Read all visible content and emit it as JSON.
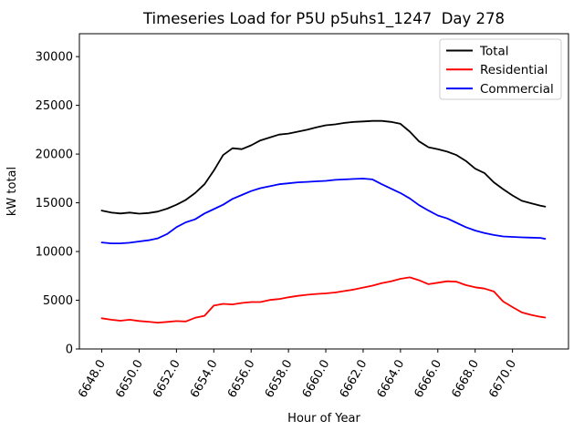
{
  "chart_data": {
    "type": "line",
    "title": "Timeseries Load for P5U p5uhs1_1247  Day 278",
    "xlabel": "Hour of Year",
    "ylabel": "kW total",
    "xlim": [
      6646.8,
      6673.0
    ],
    "ylim": [
      0,
      32350
    ],
    "grid": false,
    "legend_position": "upper right",
    "xticks": {
      "values": [
        6648,
        6650,
        6652,
        6654,
        6656,
        6658,
        6660,
        6662,
        6664,
        6666,
        6668,
        6670
      ],
      "labels": [
        "6648.0",
        "6650.0",
        "6652.0",
        "6654.0",
        "6656.0",
        "6658.0",
        "6660.0",
        "6662.0",
        "6664.0",
        "6666.0",
        "6668.0",
        "6670.0"
      ]
    },
    "yticks": {
      "values": [
        0,
        5000,
        10000,
        15000,
        20000,
        25000,
        30000
      ],
      "labels": [
        "0",
        "5000",
        "10000",
        "15000",
        "20000",
        "25000",
        "30000"
      ]
    },
    "x": [
      6648.0,
      6648.5,
      6649.0,
      6649.5,
      6650.0,
      6650.5,
      6651.0,
      6651.5,
      6652.0,
      6652.5,
      6653.0,
      6653.5,
      6654.0,
      6654.5,
      6655.0,
      6655.5,
      6656.0,
      6656.5,
      6657.0,
      6657.5,
      6658.0,
      6658.5,
      6659.0,
      6659.5,
      6660.0,
      6660.5,
      6661.0,
      6661.5,
      6662.0,
      6662.5,
      6663.0,
      6663.5,
      6664.0,
      6664.5,
      6665.0,
      6665.5,
      6666.0,
      6666.5,
      6667.0,
      6667.5,
      6668.0,
      6668.5,
      6669.0,
      6669.5,
      6670.0,
      6670.5,
      6671.0,
      6671.5,
      6671.75
    ],
    "series": [
      {
        "name": "Total",
        "color": "#000000",
        "values": [
          14200,
          14000,
          13900,
          14000,
          13880,
          13950,
          14100,
          14400,
          14800,
          15300,
          16000,
          16900,
          18300,
          19900,
          20600,
          20500,
          20900,
          21400,
          21700,
          22000,
          22100,
          22300,
          22500,
          22750,
          22950,
          23050,
          23200,
          23300,
          23350,
          23400,
          23400,
          23300,
          23100,
          22300,
          21300,
          20700,
          20500,
          20250,
          19900,
          19300,
          18500,
          18050,
          17100,
          16400,
          15750,
          15200,
          14950,
          14700,
          14600
        ]
      },
      {
        "name": "Residential",
        "color": "#ff0000",
        "values": [
          3150,
          3000,
          2900,
          3000,
          2870,
          2800,
          2700,
          2780,
          2860,
          2820,
          3200,
          3400,
          4450,
          4630,
          4570,
          4720,
          4815,
          4815,
          5030,
          5125,
          5300,
          5450,
          5560,
          5650,
          5700,
          5800,
          5950,
          6100,
          6300,
          6500,
          6750,
          6950,
          7200,
          7350,
          7050,
          6650,
          6800,
          6950,
          6900,
          6550,
          6330,
          6200,
          5900,
          4870,
          4300,
          3750,
          3500,
          3300,
          3230
        ]
      },
      {
        "name": "Commercial",
        "color": "#0000ff",
        "values": [
          10930,
          10840,
          10840,
          10900,
          11030,
          11150,
          11350,
          11800,
          12500,
          13000,
          13300,
          13900,
          14350,
          14800,
          15400,
          15800,
          16200,
          16500,
          16700,
          16900,
          17000,
          17100,
          17150,
          17200,
          17250,
          17350,
          17400,
          17450,
          17480,
          17400,
          16900,
          16450,
          16000,
          15450,
          14750,
          14200,
          13700,
          13400,
          12950,
          12500,
          12150,
          11900,
          11700,
          11550,
          11500,
          11450,
          11430,
          11400,
          11300
        ]
      }
    ]
  }
}
